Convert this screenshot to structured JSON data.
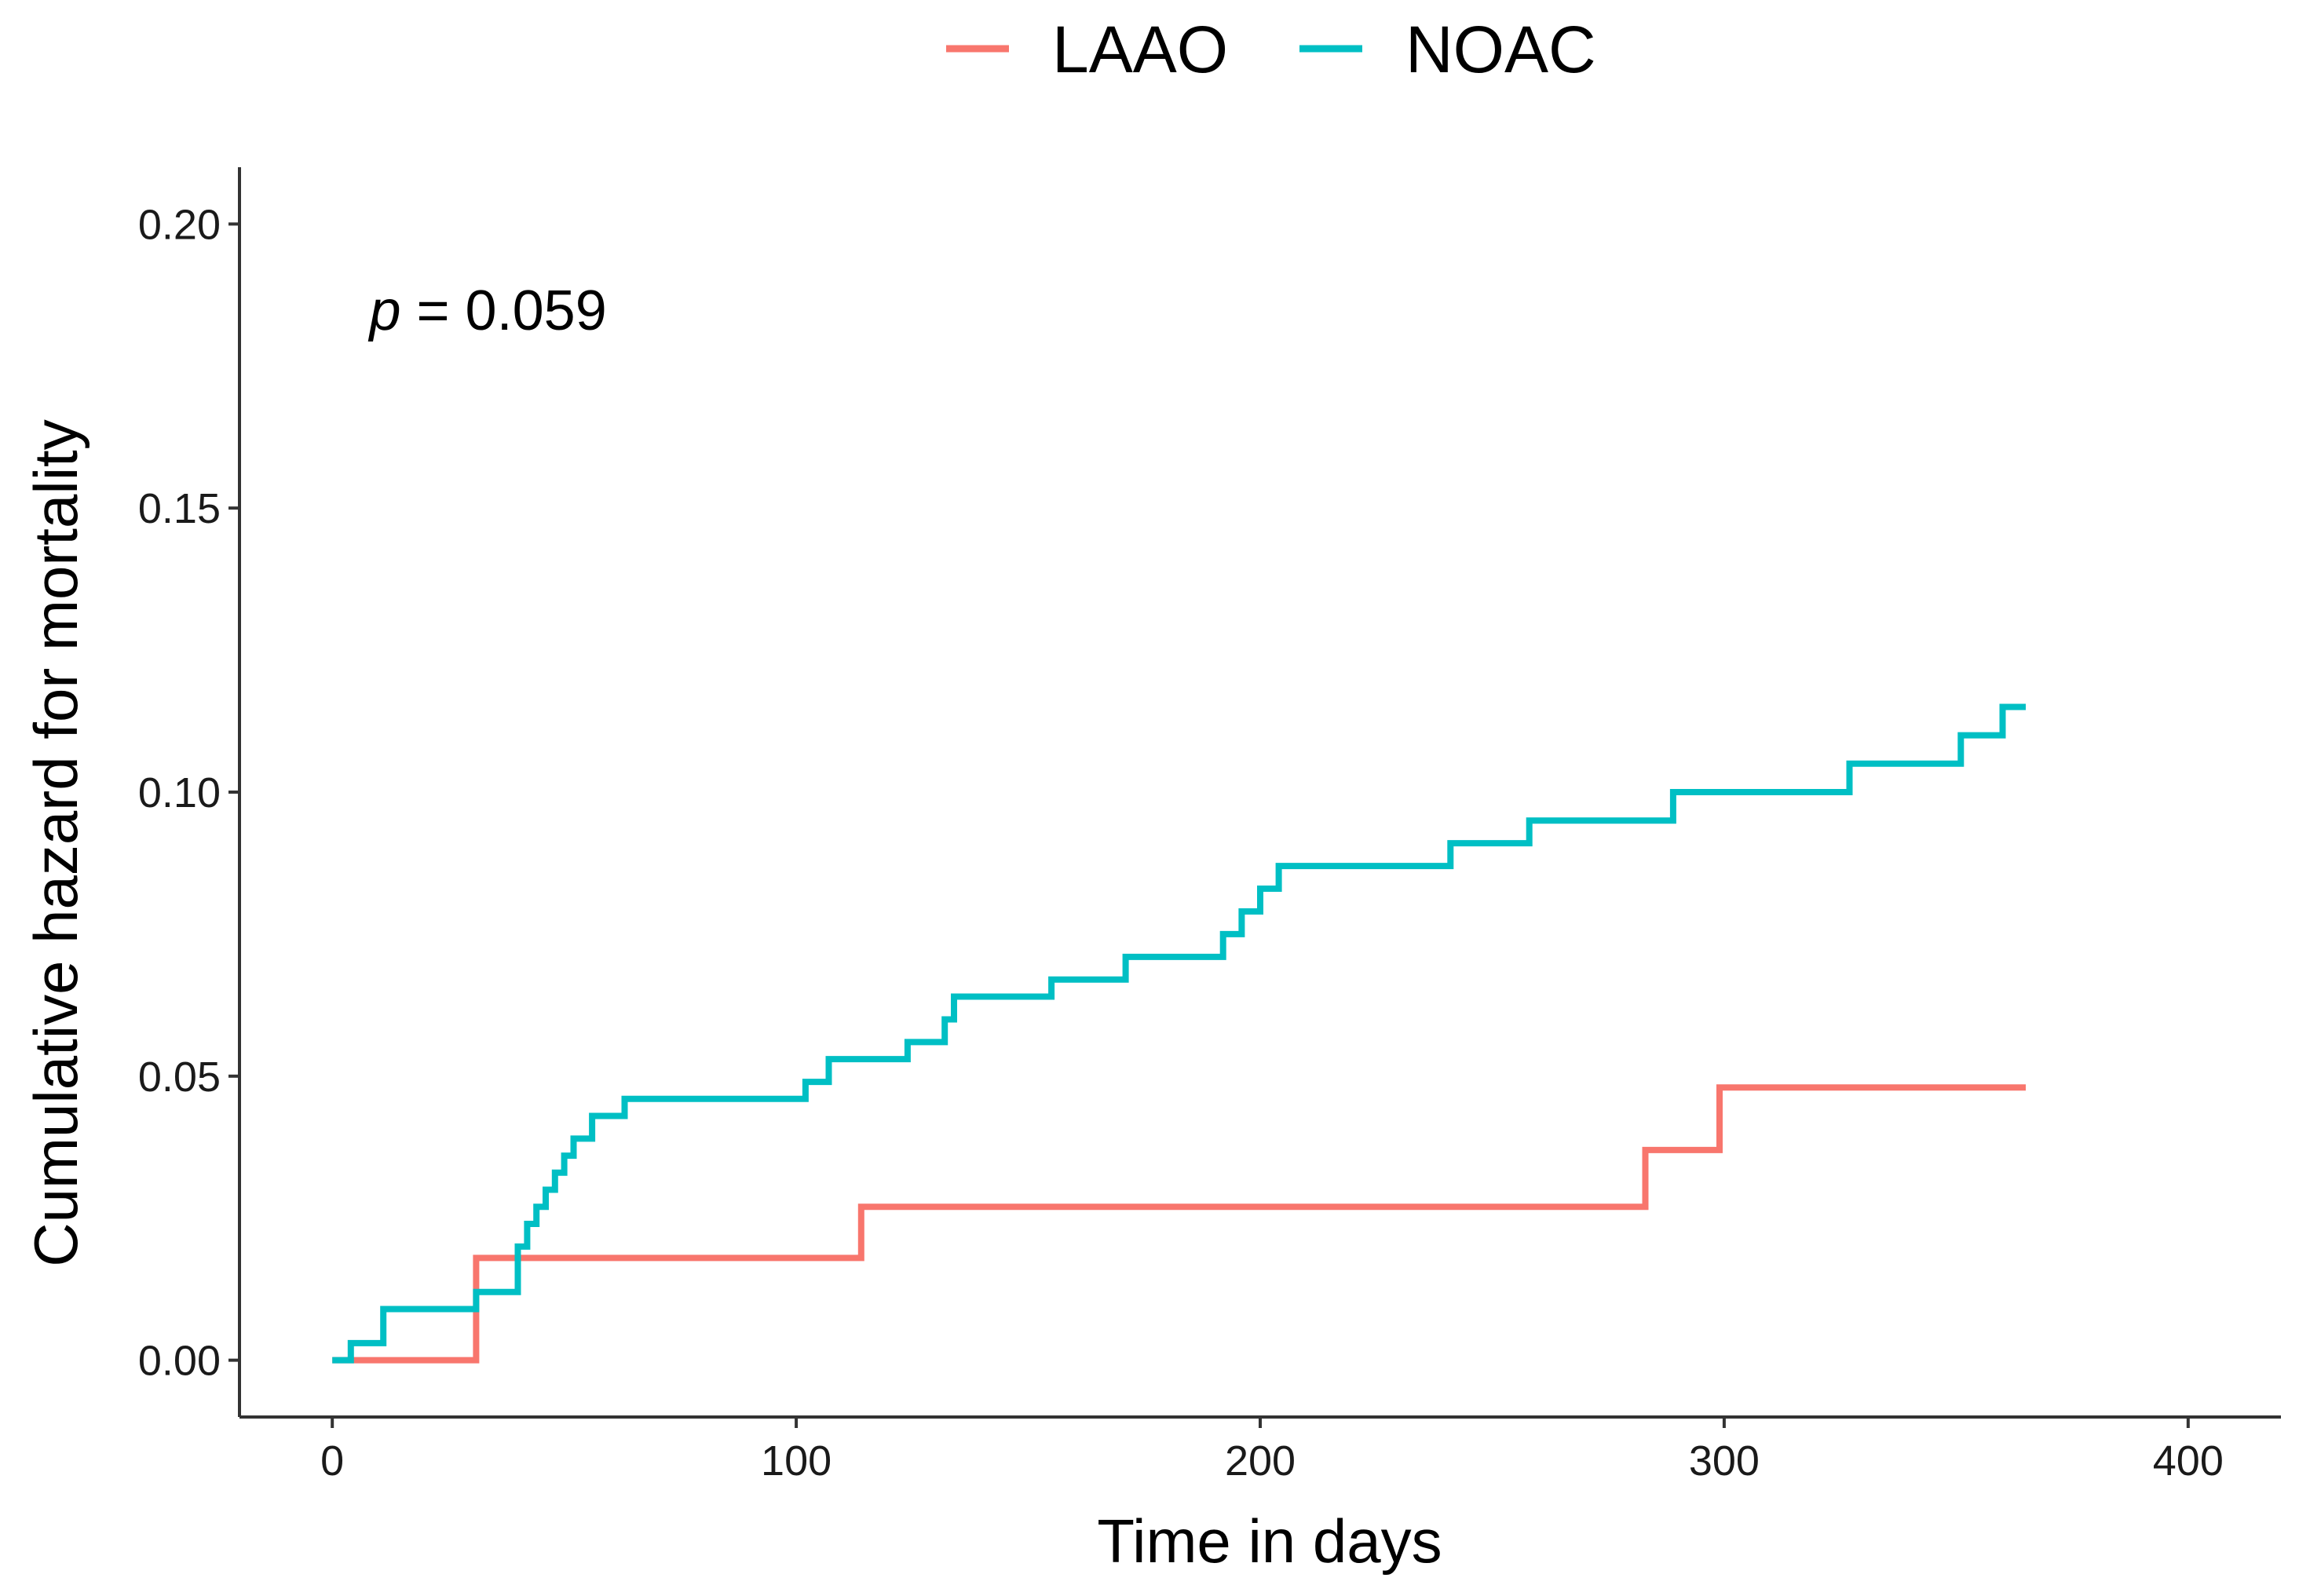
{
  "chart_data": {
    "type": "line",
    "step": true,
    "title": "",
    "xlabel": "Time in days",
    "ylabel": "Cumulative hazard for mortality",
    "xlim": [
      -20,
      420
    ],
    "ylim": [
      -0.01,
      0.21
    ],
    "xticks": [
      0,
      100,
      200,
      300,
      400
    ],
    "xtick_labels": [
      "0",
      "100",
      "200",
      "300",
      "400"
    ],
    "yticks": [
      0.0,
      0.05,
      0.1,
      0.15,
      0.2
    ],
    "ytick_labels": [
      "0.00",
      "0.05",
      "0.10",
      "0.15",
      "0.20"
    ],
    "grid": false,
    "legend_position": "top",
    "annotation": {
      "p_symbol": "p",
      "p_rest": " = 0.059",
      "x": 8,
      "y": 0.185
    },
    "series": [
      {
        "name": "LAAO",
        "color": "#F8766D",
        "x": [
          0,
          29,
          31,
          114,
          283,
          299,
          365
        ],
        "y": [
          0.0,
          0.0,
          0.018,
          0.027,
          0.037,
          0.048,
          0.048
        ]
      },
      {
        "name": "NOAC",
        "color": "#00BFC4",
        "x": [
          0,
          4,
          11,
          31,
          40,
          42,
          44,
          46,
          48,
          50,
          52,
          56,
          63,
          102,
          107,
          124,
          132,
          134,
          155,
          171,
          192,
          196,
          200,
          204,
          241,
          258,
          289,
          327,
          351,
          360,
          365
        ],
        "y": [
          0.0,
          0.003,
          0.009,
          0.012,
          0.02,
          0.024,
          0.027,
          0.03,
          0.033,
          0.036,
          0.039,
          0.043,
          0.046,
          0.049,
          0.053,
          0.056,
          0.06,
          0.064,
          0.067,
          0.071,
          0.075,
          0.079,
          0.083,
          0.087,
          0.091,
          0.095,
          0.1,
          0.105,
          0.11,
          0.115,
          0.115
        ]
      }
    ]
  }
}
